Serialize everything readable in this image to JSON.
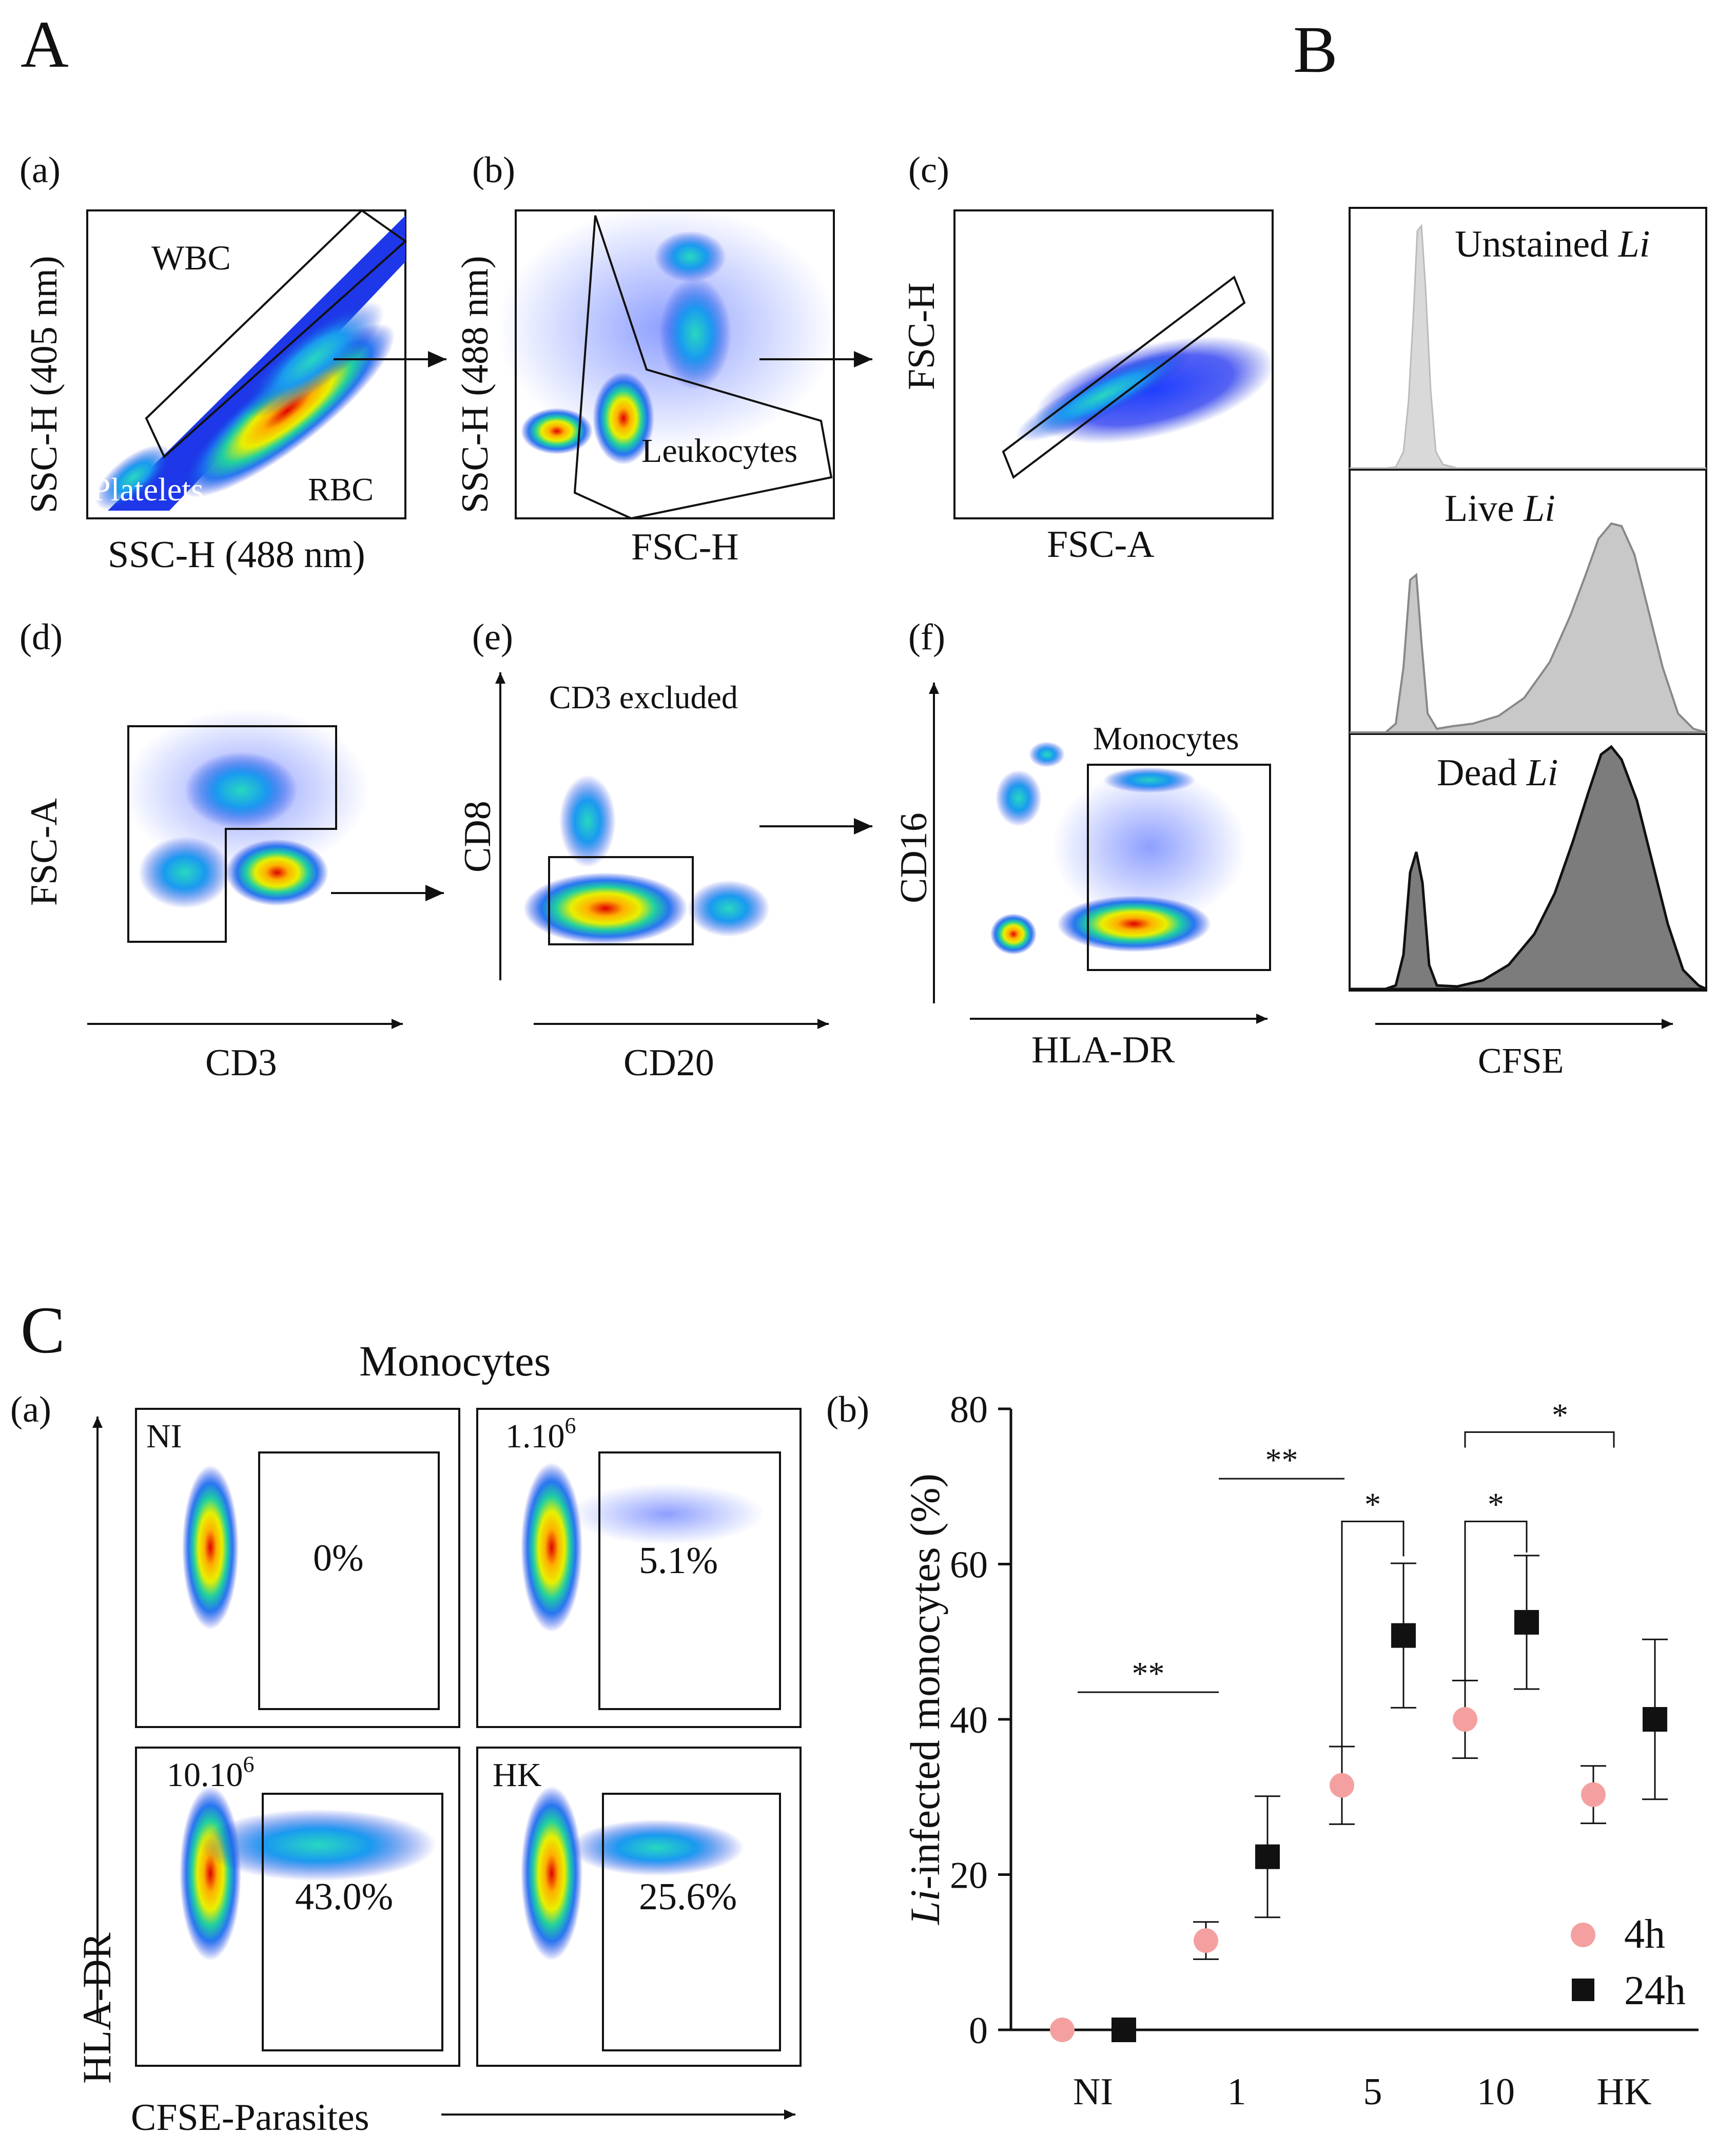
{
  "panel_letters": {
    "A": "A",
    "B": "B",
    "C": "C"
  },
  "panelA": {
    "a": {
      "label": "(a)",
      "ylabel": "SSC-H (405 nm)",
      "xlabel": "SSC-H (488 nm)",
      "gates": {
        "wbc": "WBC",
        "platelets": "Platelets",
        "rbc": "RBC"
      }
    },
    "b": {
      "label": "(b)",
      "ylabel": "SSC-H (488 nm)",
      "xlabel": "FSC-H",
      "gate": "Leukocytes"
    },
    "c": {
      "label": "(c)",
      "ylabel": "FSC-H",
      "xlabel": "FSC-A"
    },
    "d": {
      "label": "(d)",
      "ylabel": "FSC-A",
      "xlabel": "CD3"
    },
    "e": {
      "label": "(e)",
      "ylabel": "CD8",
      "xlabel": "CD20",
      "note": "CD3 excluded"
    },
    "f": {
      "label": "(f)",
      "ylabel": "CD16",
      "xlabel": "HLA-DR",
      "gate": "Monocytes"
    }
  },
  "panelB": {
    "histograms": [
      {
        "prefix": "Unstained ",
        "italic": "Li"
      },
      {
        "prefix": "Live ",
        "italic": "Li"
      },
      {
        "prefix": "Dead ",
        "italic": "Li"
      }
    ],
    "xlabel": "CFSE"
  },
  "panelC": {
    "a": {
      "label": "(a)",
      "title": "Monocytes",
      "ylabel": "HLA-DR",
      "xlabel": "CFSE-Parasites",
      "plots": [
        {
          "condition": "NI",
          "percent": "0%"
        },
        {
          "condition_base": "1.10",
          "condition_exp": "6",
          "percent": "5.1%"
        },
        {
          "condition_base": "10.10",
          "condition_exp": "6",
          "percent": "43.0%"
        },
        {
          "condition": "HK",
          "percent": "25.6%"
        }
      ]
    },
    "b": {
      "label": "(b)"
    }
  },
  "chart_data": {
    "type": "scatter",
    "ylabel_italic": "Li",
    "ylabel_rest": "-infected monocytes (%)",
    "xlabel": "",
    "categories": [
      "NI",
      "1",
      "5",
      "10",
      "HK"
    ],
    "ylim": [
      0,
      80
    ],
    "yticks": [
      "0",
      "20",
      "40",
      "60",
      "80"
    ],
    "series": [
      {
        "name": "4h",
        "marker": "circle",
        "color": "#f4a0a0",
        "values": [
          0,
          11.5,
          31.5,
          40,
          30.3
        ],
        "errors": [
          0,
          2.4,
          5,
          5,
          3.7
        ]
      },
      {
        "name": "24h",
        "marker": "square",
        "color": "#111111",
        "values": [
          0,
          22.3,
          50.8,
          52.5,
          40
        ],
        "errors": [
          0,
          7.8,
          9.3,
          8.6,
          10.3
        ]
      }
    ],
    "significance": [
      {
        "label": "**",
        "from": "NI",
        "to": "1"
      },
      {
        "label": "**",
        "from": "1",
        "to": "5"
      },
      {
        "label": "*",
        "from": "5 (4h)",
        "to": "5 (24h)"
      },
      {
        "label": "*",
        "from": "10 (4h)",
        "to": "10 (24h)"
      },
      {
        "label": "*",
        "from": "10",
        "to": "HK"
      }
    ],
    "legend_position": "bottom-right"
  }
}
